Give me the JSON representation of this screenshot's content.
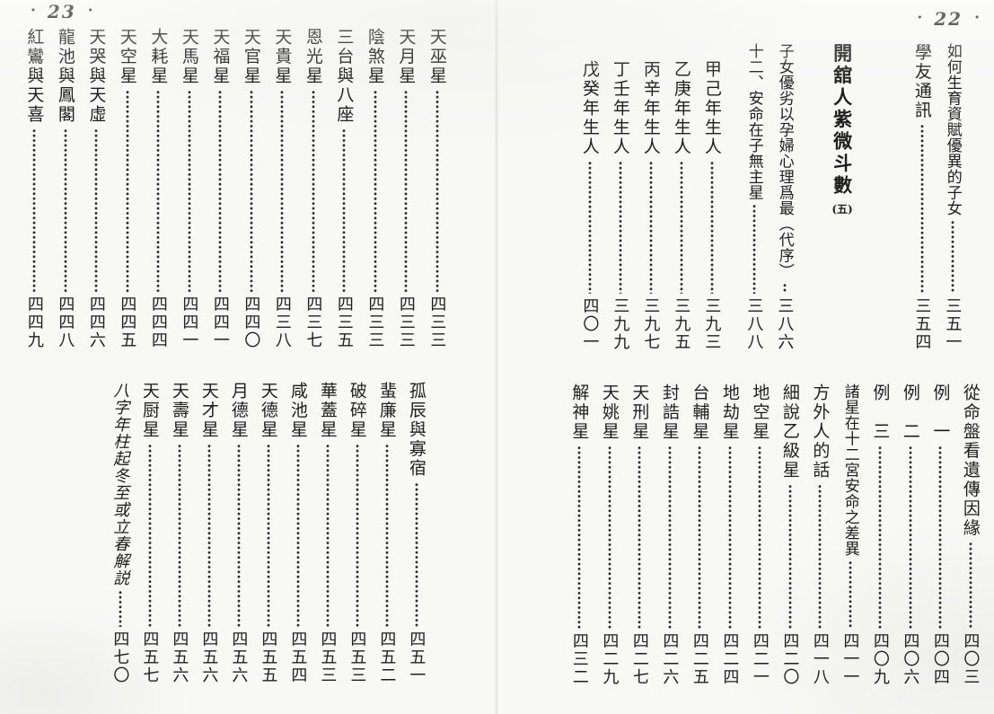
{
  "ornament_dot": "·",
  "left_page": {
    "page_label": "23",
    "upper_entries": [
      {
        "title": "天巫星",
        "page": "四三三"
      },
      {
        "title": "天月星",
        "page": "四三三"
      },
      {
        "title": "陰煞星",
        "page": "四三三"
      },
      {
        "title": "三台與八座",
        "page": "四三五"
      },
      {
        "title": "恩光星",
        "page": "四三七"
      },
      {
        "title": "天貴星",
        "page": "四三八"
      },
      {
        "title": "天官星",
        "page": "四四〇"
      },
      {
        "title": "天福星",
        "page": "四四一"
      },
      {
        "title": "天馬星",
        "page": "四四一"
      },
      {
        "title": "大耗星",
        "page": "四四四"
      },
      {
        "title": "天空星",
        "page": "四四五"
      },
      {
        "title": "天哭與天虛",
        "page": "四四六"
      },
      {
        "title": "龍池與鳳閣",
        "page": "四四八"
      },
      {
        "title": "紅鸞與天喜",
        "page": "四四九"
      }
    ],
    "lower_entries": [
      {
        "title": "孤辰與寡宿",
        "page": "四五一"
      },
      {
        "title": "蜚廉星",
        "page": "四五二"
      },
      {
        "title": "破碎星",
        "page": "四五三"
      },
      {
        "title": "華蓋星",
        "page": "四五三"
      },
      {
        "title": "咸池星",
        "page": "四五四"
      },
      {
        "title": "天德星",
        "page": "四五五"
      },
      {
        "title": "月德星",
        "page": "四五六"
      },
      {
        "title": "天才星",
        "page": "四五六"
      },
      {
        "title": "天壽星",
        "page": "四五六"
      },
      {
        "title": "天厨星",
        "page": "四五七"
      },
      {
        "title": "八字年柱起冬至或立春解説",
        "page": "四七〇",
        "kai": true
      }
    ]
  },
  "right_page": {
    "page_label": "22",
    "upper_entries": [
      {
        "title": "如何生育資賦優異的子女",
        "page": "三五一"
      },
      {
        "title": "學友通訊",
        "page": "三五四"
      },
      {
        "title": "開舘人紫微斗數",
        "suffix": "(五)",
        "header": true
      },
      {
        "title": "子女優劣以孕婦心理爲最（代序）",
        "page": "三八六"
      },
      {
        "title": "十二、安命在子無主星",
        "page": "三八八"
      },
      {
        "title": "甲己年生人",
        "page": "三九三",
        "indent": true
      },
      {
        "title": "乙庚年生人",
        "page": "三九五",
        "indent": true
      },
      {
        "title": "丙辛年生人",
        "page": "三九七",
        "indent": true
      },
      {
        "title": "丁壬年生人",
        "page": "三九九",
        "indent": true
      },
      {
        "title": "戊癸年生人",
        "page": "四〇一",
        "indent": true
      }
    ],
    "lower_entries": [
      {
        "title": "從命盤看遺傳因緣",
        "page": "四〇三"
      },
      {
        "title": "例　一",
        "page": "四〇四"
      },
      {
        "title": "例　二",
        "page": "四〇六"
      },
      {
        "title": "例　三",
        "page": "四〇九"
      },
      {
        "title": "諸星在十二宮安命之差異",
        "page": "四一一"
      },
      {
        "title": "方外人的話",
        "page": "四一八"
      },
      {
        "title": "細說乙級星",
        "page": "四二〇"
      },
      {
        "title": "地空星",
        "page": "四二一"
      },
      {
        "title": "地劫星",
        "page": "四二四"
      },
      {
        "title": "台輔星",
        "page": "四二五"
      },
      {
        "title": "封誥星",
        "page": "四二六"
      },
      {
        "title": "天刑星",
        "page": "四二七"
      },
      {
        "title": "天姚星",
        "page": "四二九"
      },
      {
        "title": "解神星",
        "page": "四三二"
      }
    ]
  }
}
